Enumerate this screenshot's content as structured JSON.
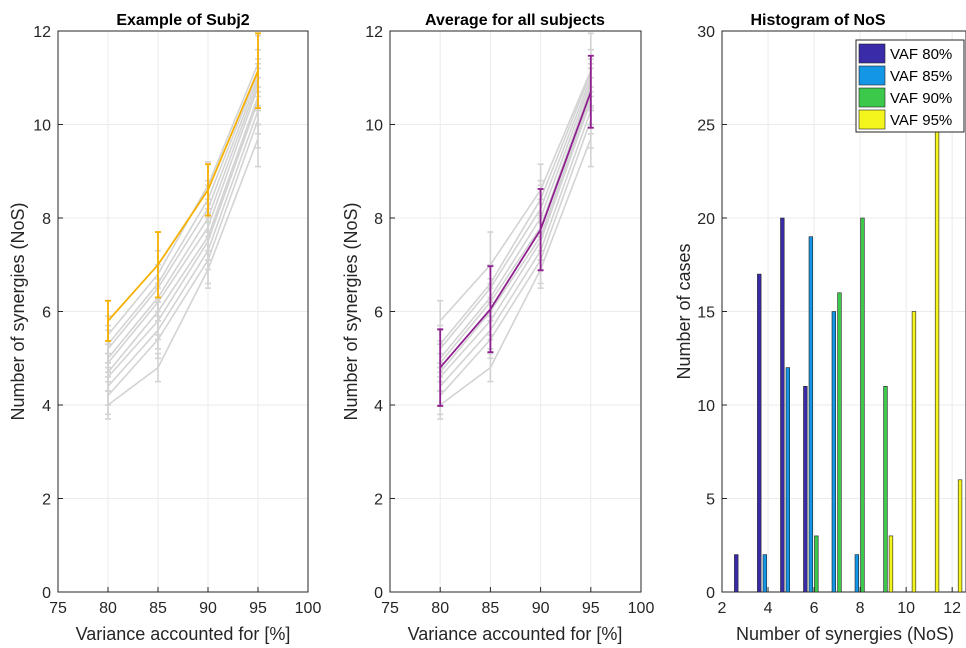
{
  "colors": {
    "gray_line": "#d3d3d3",
    "subject_highlight": "#f5b000",
    "average_line": "#8e1f8e",
    "grid": "#ebebeb",
    "axis": "#262626",
    "hist_series": [
      "#3a2ca8",
      "#1496e6",
      "#3cc84a",
      "#f5f51e"
    ]
  },
  "chart_data": [
    {
      "type": "line",
      "title": "Example of Subj2",
      "xlabel": "Variance accounted for [%]",
      "ylabel": "Number of synergies (NoS)",
      "xlim": [
        75,
        100
      ],
      "ylim": [
        0,
        12
      ],
      "xticks": [
        75,
        80,
        85,
        90,
        95,
        100
      ],
      "yticks": [
        0,
        2,
        4,
        6,
        8,
        10,
        12
      ],
      "grid": true,
      "x": [
        80,
        85,
        90,
        95
      ],
      "background_series": [
        {
          "values": [
            4.0,
            4.8,
            6.9,
            9.7
          ],
          "err": [
            0.3,
            0.3,
            0.4,
            0.6
          ]
        },
        {
          "values": [
            4.2,
            5.4,
            7.1,
            10.1
          ],
          "err": [
            0.4,
            0.4,
            0.5,
            0.6
          ]
        },
        {
          "values": [
            4.4,
            5.6,
            7.3,
            10.3
          ],
          "err": [
            0.4,
            0.4,
            0.4,
            0.5
          ]
        },
        {
          "values": [
            4.6,
            5.8,
            7.5,
            10.5
          ],
          "err": [
            0.3,
            0.4,
            0.4,
            0.5
          ]
        },
        {
          "values": [
            4.7,
            6.0,
            7.6,
            10.6
          ],
          "err": [
            0.4,
            0.5,
            0.5,
            0.6
          ]
        },
        {
          "values": [
            4.9,
            6.2,
            7.8,
            10.8
          ],
          "err": [
            0.4,
            0.4,
            0.5,
            0.5
          ]
        },
        {
          "values": [
            5.0,
            6.3,
            8.0,
            10.9
          ],
          "err": [
            0.3,
            0.4,
            0.4,
            0.5
          ]
        },
        {
          "values": [
            5.2,
            6.5,
            8.2,
            11.0
          ],
          "err": [
            0.4,
            0.5,
            0.5,
            0.6
          ]
        },
        {
          "values": [
            5.3,
            6.6,
            8.4,
            11.1
          ],
          "err": [
            0.4,
            0.4,
            0.4,
            0.5
          ]
        },
        {
          "values": [
            5.5,
            6.8,
            8.7,
            11.3
          ],
          "err": [
            0.4,
            0.5,
            0.5,
            0.6
          ]
        }
      ],
      "highlight": {
        "values": [
          5.8,
          7.0,
          8.6,
          11.15
        ],
        "err": [
          0.43,
          0.7,
          0.55,
          0.8
        ]
      }
    },
    {
      "type": "line",
      "title": "Average for all subjects",
      "xlabel": "Variance accounted for [%]",
      "ylabel": "Number of synergies (NoS)",
      "xlim": [
        75,
        100
      ],
      "ylim": [
        0,
        12
      ],
      "xticks": [
        75,
        80,
        85,
        90,
        95,
        100
      ],
      "yticks": [
        0,
        2,
        4,
        6,
        8,
        10,
        12
      ],
      "grid": true,
      "x": [
        80,
        85,
        90,
        95
      ],
      "background_series": [
        {
          "values": [
            4.0,
            4.8,
            6.9,
            9.7
          ],
          "err": [
            0.3,
            0.3,
            0.4,
            0.6
          ]
        },
        {
          "values": [
            4.2,
            5.4,
            7.1,
            10.1
          ],
          "err": [
            0.4,
            0.4,
            0.5,
            0.6
          ]
        },
        {
          "values": [
            4.4,
            5.6,
            7.3,
            10.3
          ],
          "err": [
            0.4,
            0.4,
            0.4,
            0.5
          ]
        },
        {
          "values": [
            4.6,
            5.8,
            7.5,
            10.5
          ],
          "err": [
            0.3,
            0.4,
            0.4,
            0.5
          ]
        },
        {
          "values": [
            4.7,
            6.0,
            7.6,
            10.6
          ],
          "err": [
            0.4,
            0.5,
            0.5,
            0.6
          ]
        },
        {
          "values": [
            4.9,
            6.2,
            7.8,
            10.8
          ],
          "err": [
            0.4,
            0.4,
            0.5,
            0.5
          ]
        },
        {
          "values": [
            5.0,
            6.3,
            8.0,
            10.9
          ],
          "err": [
            0.3,
            0.4,
            0.4,
            0.5
          ]
        },
        {
          "values": [
            5.2,
            6.5,
            8.2,
            11.0
          ],
          "err": [
            0.4,
            0.5,
            0.5,
            0.6
          ]
        },
        {
          "values": [
            5.3,
            6.6,
            8.4,
            11.1
          ],
          "err": [
            0.4,
            0.4,
            0.4,
            0.5
          ]
        },
        {
          "values": [
            5.8,
            7.0,
            8.6,
            11.15
          ],
          "err": [
            0.43,
            0.7,
            0.55,
            0.8
          ]
        }
      ],
      "highlight": {
        "values": [
          4.8,
          6.05,
          7.75,
          10.7
        ],
        "err": [
          0.82,
          0.92,
          0.87,
          0.77
        ]
      }
    },
    {
      "type": "bar",
      "title": "Histogram of NoS",
      "xlabel": "Number of synergies (NoS)",
      "ylabel": "Number of cases",
      "xlim": [
        2,
        12.6
      ],
      "ylim": [
        0,
        30
      ],
      "xticks": [
        2,
        4,
        6,
        8,
        10,
        12
      ],
      "yticks": [
        0,
        5,
        10,
        15,
        20,
        25,
        30
      ],
      "grid": true,
      "legend_position": "top-right",
      "categories": [
        3,
        4,
        5,
        6,
        7,
        8,
        9,
        10,
        11,
        12
      ],
      "series": [
        {
          "name": "VAF 80%",
          "values": [
            2,
            17,
            20,
            11,
            0,
            0,
            0,
            0,
            0,
            0
          ]
        },
        {
          "name": "VAF 85%",
          "values": [
            0,
            2,
            12,
            19,
            15,
            2,
            0,
            0,
            0,
            0
          ]
        },
        {
          "name": "VAF 90%",
          "values": [
            0,
            0,
            0,
            3,
            16,
            20,
            11,
            0,
            0,
            0
          ]
        },
        {
          "name": "VAF 95%",
          "values": [
            0,
            0,
            0,
            0,
            0,
            0,
            3,
            15,
            25,
            6
          ]
        }
      ]
    }
  ]
}
